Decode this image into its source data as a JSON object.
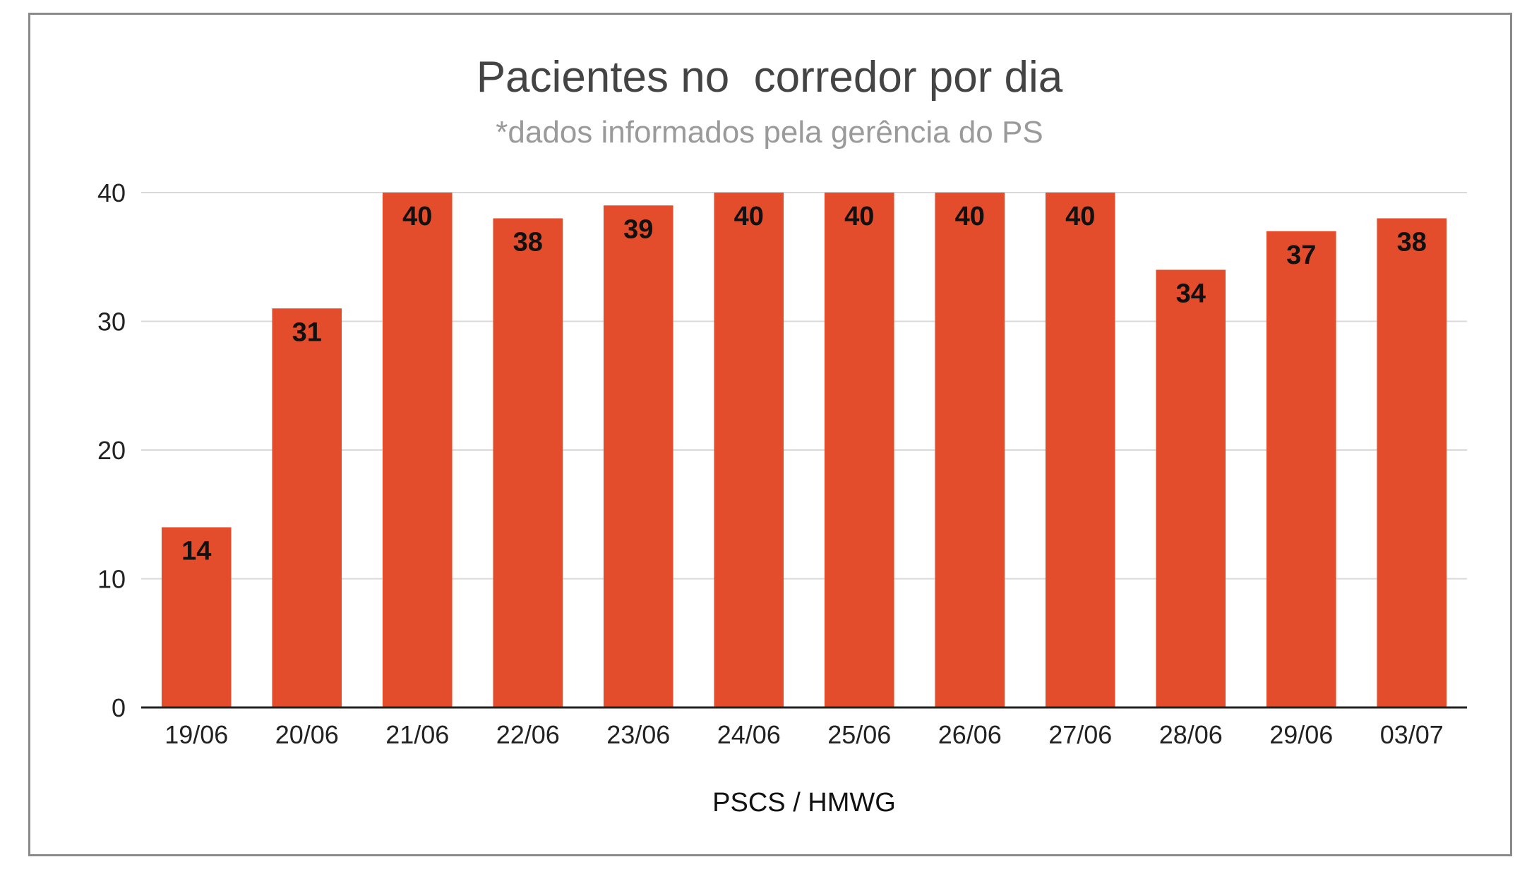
{
  "chart_data": {
    "type": "bar",
    "title": "Pacientes no  corredor por dia",
    "subtitle": "*dados informados pela gerência do PS",
    "xlabel": "PSCS / HMWG",
    "ylabel": "",
    "categories": [
      "19/06",
      "20/06",
      "21/06",
      "22/06",
      "23/06",
      "24/06",
      "25/06",
      "26/06",
      "27/06",
      "28/06",
      "29/06",
      "03/07"
    ],
    "values": [
      14,
      31,
      40,
      38,
      39,
      40,
      40,
      40,
      40,
      34,
      37,
      38
    ],
    "ylim": [
      0,
      40
    ],
    "yticks": [
      0,
      10,
      20,
      30,
      40
    ],
    "grid": true,
    "legend": "none",
    "bar_color": "#e34d2b",
    "gridline_color": "#d9d9d9",
    "axis_color": "#222222"
  }
}
